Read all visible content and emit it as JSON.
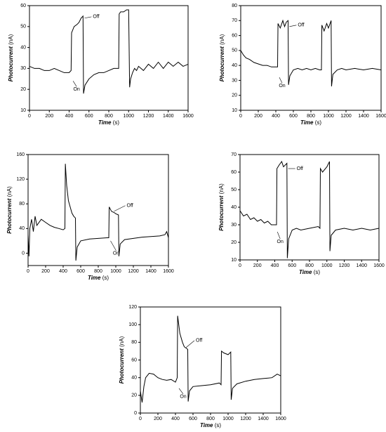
{
  "chart_data": [
    {
      "type": "line",
      "xlabel": "Time",
      "xunit": "(s)",
      "ylabel": "Photocurrent",
      "yunit": "(nA)",
      "color": "#000000",
      "xlim": [
        0,
        1600
      ],
      "xticks": [
        0,
        200,
        400,
        600,
        800,
        1000,
        1200,
        1400,
        1600
      ],
      "ylim": [
        10,
        60
      ],
      "yticks": [
        10,
        20,
        30,
        40,
        50,
        60
      ],
      "annotations": [
        "On",
        "Off"
      ],
      "x": [
        0,
        50,
        100,
        150,
        200,
        250,
        300,
        350,
        400,
        420,
        425,
        450,
        480,
        500,
        520,
        540,
        545,
        560,
        600,
        650,
        700,
        750,
        800,
        850,
        900,
        905,
        920,
        950,
        980,
        1000,
        1010,
        1020,
        1040,
        1060,
        1080,
        1100,
        1150,
        1200,
        1250,
        1300,
        1350,
        1400,
        1450,
        1500,
        1550,
        1600
      ],
      "values": [
        31,
        30,
        30,
        29,
        29,
        30,
        29,
        28,
        28,
        29,
        47,
        50,
        51,
        52,
        54,
        55,
        18,
        22,
        25,
        27,
        28,
        28,
        29,
        30,
        30,
        56,
        57,
        57,
        58,
        58,
        21,
        25,
        28,
        30,
        29,
        31,
        29,
        32,
        30,
        33,
        30,
        33,
        31,
        33,
        31,
        32
      ]
    },
    {
      "type": "line",
      "xlabel": "Time",
      "xunit": "(s)",
      "ylabel": "Photocurrent",
      "yunit": "(nA)",
      "color": "#000000",
      "xlim": [
        0,
        1600
      ],
      "xticks": [
        0,
        200,
        400,
        600,
        800,
        1000,
        1200,
        1400,
        1600
      ],
      "ylim": [
        10,
        80
      ],
      "yticks": [
        10,
        20,
        30,
        40,
        50,
        60,
        70,
        80
      ],
      "annotations": [
        "On",
        "Off"
      ],
      "x": [
        0,
        30,
        60,
        100,
        150,
        200,
        250,
        300,
        350,
        400,
        420,
        425,
        450,
        480,
        500,
        520,
        540,
        545,
        560,
        600,
        650,
        700,
        750,
        800,
        850,
        900,
        920,
        925,
        950,
        980,
        1000,
        1030,
        1035,
        1050,
        1100,
        1150,
        1200,
        1300,
        1400,
        1500,
        1600
      ],
      "values": [
        50,
        47,
        45,
        44,
        42,
        41,
        40,
        40,
        39,
        39,
        39,
        68,
        65,
        70,
        66,
        69,
        70,
        27,
        33,
        37,
        38,
        37,
        38,
        37,
        38,
        37,
        37,
        67,
        63,
        68,
        65,
        70,
        26,
        34,
        37,
        38,
        37,
        38,
        37,
        38,
        37
      ]
    },
    {
      "type": "line",
      "xlabel": "Time",
      "xunit": "(s)",
      "ylabel": "Photocurrent",
      "yunit": "(nA)",
      "color": "#000000",
      "xlim": [
        0,
        1600
      ],
      "xticks": [
        0,
        200,
        400,
        600,
        800,
        1000,
        1200,
        1400,
        1600
      ],
      "ylim": [
        -20,
        160
      ],
      "yticks": [
        0,
        40,
        80,
        120,
        160
      ],
      "annotations": [
        "On",
        "Off"
      ],
      "x": [
        0,
        10,
        20,
        40,
        60,
        80,
        100,
        150,
        200,
        250,
        300,
        350,
        400,
        420,
        425,
        440,
        460,
        480,
        500,
        520,
        540,
        545,
        560,
        600,
        700,
        800,
        900,
        920,
        925,
        950,
        980,
        1000,
        1030,
        1035,
        1050,
        1100,
        1200,
        1300,
        1400,
        1500,
        1560,
        1580,
        1600
      ],
      "values": [
        30,
        -5,
        40,
        55,
        35,
        60,
        45,
        55,
        50,
        45,
        42,
        40,
        38,
        40,
        145,
        110,
        85,
        75,
        65,
        60,
        57,
        -12,
        10,
        20,
        23,
        24,
        25,
        25,
        75,
        68,
        66,
        64,
        62,
        -5,
        15,
        22,
        24,
        26,
        27,
        28,
        30,
        35,
        25
      ]
    },
    {
      "type": "line",
      "xlabel": "Time",
      "xunit": "(s)",
      "ylabel": "Photocurrent",
      "yunit": "(nA)",
      "color": "#000000",
      "xlim": [
        0,
        1600
      ],
      "xticks": [
        0,
        200,
        400,
        600,
        800,
        1000,
        1200,
        1400,
        1600
      ],
      "ylim": [
        10,
        70
      ],
      "yticks": [
        10,
        20,
        30,
        40,
        50,
        60,
        70
      ],
      "annotations": [
        "On",
        "Off"
      ],
      "x": [
        0,
        40,
        80,
        120,
        160,
        200,
        240,
        280,
        320,
        360,
        400,
        420,
        425,
        450,
        480,
        500,
        540,
        545,
        560,
        600,
        650,
        700,
        800,
        900,
        920,
        925,
        950,
        1000,
        1030,
        1035,
        1050,
        1100,
        1200,
        1300,
        1400,
        1500,
        1600
      ],
      "values": [
        38,
        35,
        36,
        33,
        34,
        32,
        33,
        31,
        32,
        30,
        30,
        30,
        62,
        64,
        66,
        63,
        65,
        11,
        22,
        27,
        28,
        27,
        28,
        29,
        28,
        62,
        60,
        63,
        66,
        15,
        24,
        27,
        28,
        27,
        28,
        27,
        28
      ]
    },
    {
      "type": "line",
      "xlabel": "Time",
      "xunit": "(s)",
      "ylabel": "Photocurrent",
      "yunit": "(nA)",
      "color": "#000000",
      "xlim": [
        0,
        1600
      ],
      "xticks": [
        0,
        200,
        400,
        600,
        800,
        1000,
        1200,
        1400,
        1600
      ],
      "ylim": [
        0,
        120
      ],
      "yticks": [
        0,
        20,
        40,
        60,
        80,
        100,
        120
      ],
      "annotations": [
        "On",
        "Off"
      ],
      "x": [
        0,
        20,
        40,
        60,
        100,
        150,
        200,
        250,
        300,
        350,
        400,
        420,
        425,
        450,
        480,
        500,
        540,
        545,
        560,
        600,
        700,
        800,
        900,
        920,
        925,
        950,
        1000,
        1030,
        1035,
        1050,
        1100,
        1200,
        1300,
        1400,
        1500,
        1560,
        1600
      ],
      "values": [
        25,
        12,
        30,
        40,
        45,
        44,
        40,
        38,
        37,
        38,
        35,
        40,
        110,
        90,
        80,
        75,
        72,
        13,
        25,
        30,
        31,
        32,
        34,
        32,
        70,
        68,
        66,
        69,
        15,
        28,
        33,
        36,
        38,
        39,
        40,
        44,
        42
      ]
    }
  ]
}
